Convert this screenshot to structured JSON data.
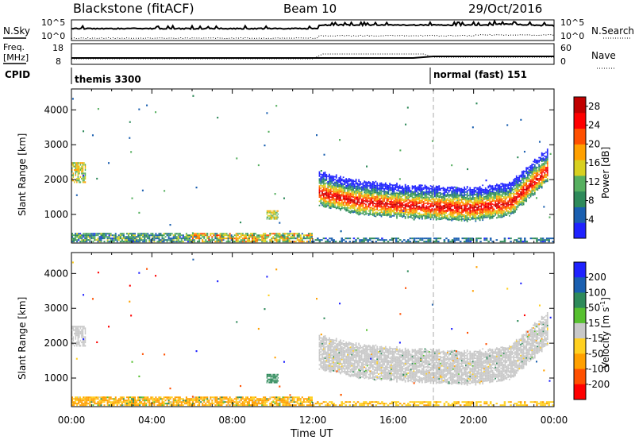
{
  "header": {
    "title": "Blackstone (fitACF)",
    "beam": "Beam 10",
    "date": "29/Oct/2016"
  },
  "top_panels": {
    "nsky_label": "N.Sky",
    "nsearch_label": "N.Search",
    "nsky_ticks": [
      "10^5",
      "10^0"
    ],
    "freq_label_1": "Freq.",
    "freq_label_2": "[MHz]",
    "freq_ticks": [
      "18",
      "8"
    ],
    "nave_label": "Nave",
    "nave_ticks": [
      "60",
      "0"
    ],
    "cpid_label": "CPID",
    "cpid_programs": [
      {
        "name": "themis 3300",
        "start_hour": 0
      },
      {
        "name": "normal (fast) 151",
        "start_hour": 18
      }
    ]
  },
  "chart_data": [
    {
      "type": "heatmap",
      "title": "Power",
      "xlabel": "",
      "ylabel": "Slant Range [km]",
      "x_ticks": [
        "00:00",
        "04:00",
        "08:00",
        "12:00",
        "16:00",
        "20:00",
        "00:00"
      ],
      "y_ticks": [
        1000,
        2000,
        3000,
        4000
      ],
      "xlim": [
        0,
        24
      ],
      "ylim": [
        180,
        4600
      ],
      "colorbar": {
        "label": "Power [dB]",
        "ticks": [
          4,
          8,
          12,
          16,
          20,
          24,
          28
        ],
        "range": [
          0,
          30
        ],
        "colors": [
          "#1f22ff",
          "#1a5fb0",
          "#2e8a5a",
          "#57b060",
          "#d8d020",
          "#ffa000",
          "#ff5000",
          "#ff0000",
          "#c00000"
        ]
      },
      "features": [
        {
          "t_start": 0.0,
          "t_end": 0.7,
          "range_start": 1900,
          "range_end": 2500,
          "level": 16
        },
        {
          "t_start": 0.0,
          "t_end": 12.0,
          "range_start": 200,
          "range_end": 450,
          "level": 6
        },
        {
          "t_start": 9.7,
          "t_end": 10.3,
          "range_start": 850,
          "range_end": 1100,
          "level": 14
        },
        {
          "t_start": 12.0,
          "t_end": 24.0,
          "range_start": 200,
          "range_end": 300,
          "level": 5
        },
        {
          "t_start": 12.3,
          "t_end": 23.7,
          "band_center_km": [
            1600,
            1350,
            1250,
            1200,
            1150,
            1300,
            2300
          ],
          "band_width_km": 650,
          "peak_level": 30
        },
        {
          "t_start": 23.5,
          "t_end": 23.9,
          "range_start": 1800,
          "range_end": 2500,
          "level": 12
        }
      ]
    },
    {
      "type": "heatmap",
      "title": "Velocity",
      "xlabel": "Time UT",
      "ylabel": "Slant Range [km]",
      "x_ticks": [
        "00:00",
        "04:00",
        "08:00",
        "12:00",
        "16:00",
        "20:00",
        "00:00"
      ],
      "y_ticks": [
        1000,
        2000,
        3000,
        4000
      ],
      "xlim": [
        0,
        24
      ],
      "ylim": [
        180,
        4600
      ],
      "colorbar": {
        "label": "Velocity [m s-1]",
        "ticks": [
          200,
          100,
          50,
          15,
          -15,
          -50,
          -100,
          -200
        ],
        "range": [
          -250,
          250
        ],
        "colors": [
          "#1f22ff",
          "#1a5fb0",
          "#2e8a5a",
          "#57c030",
          "#c8c8c8",
          "#ffd020",
          "#ffa000",
          "#ff5000",
          "#ff0000"
        ]
      },
      "features": [
        {
          "t_start": 0.0,
          "t_end": 0.7,
          "range_start": 1900,
          "range_end": 2500,
          "velocity": 0
        },
        {
          "t_start": 0.0,
          "t_end": 12.0,
          "range_start": 200,
          "range_end": 450,
          "velocity": -60
        },
        {
          "t_start": 9.7,
          "t_end": 10.3,
          "range_start": 850,
          "range_end": 1100,
          "velocity": 40
        },
        {
          "t_start": 12.3,
          "t_end": 23.7,
          "band_center_km": [
            1600,
            1350,
            1250,
            1200,
            1150,
            1300,
            2300
          ],
          "band_width_km": 650,
          "velocity": 0
        }
      ]
    }
  ]
}
